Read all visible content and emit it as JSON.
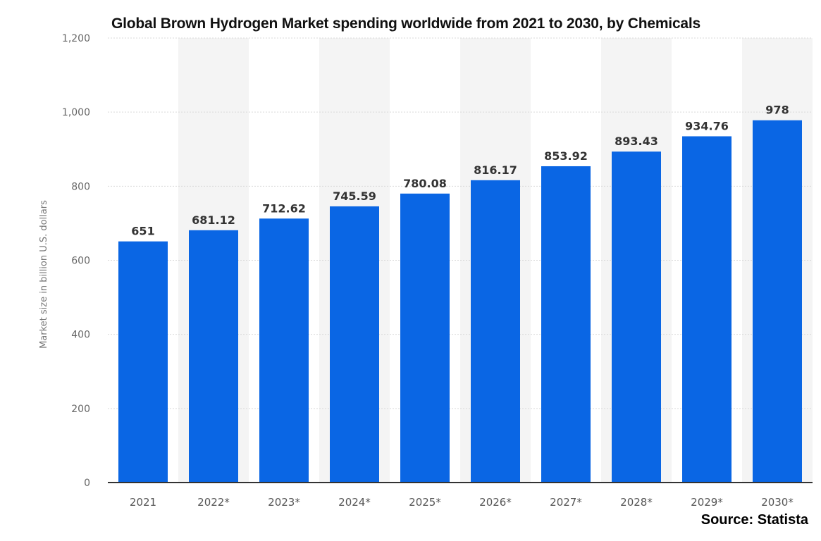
{
  "chart_data": {
    "type": "bar",
    "title": "Global Brown Hydrogen Market spending worldwide from 2021 to 2030, by Chemicals",
    "xlabel": "",
    "ylabel": "Market size in billion U.S. dollars",
    "categories": [
      "2021",
      "2022*",
      "2023*",
      "2024*",
      "2025*",
      "2026*",
      "2027*",
      "2028*",
      "2029*",
      "2030*"
    ],
    "values": [
      651,
      681.12,
      712.62,
      745.59,
      780.08,
      816.17,
      853.92,
      893.43,
      934.76,
      978
    ],
    "data_labels": [
      "651",
      "681.12",
      "712.62",
      "745.59",
      "780.08",
      "816.17",
      "853.92",
      "893.43",
      "934.76",
      "978"
    ],
    "ylim": [
      0,
      1200
    ],
    "yticks": [
      0,
      200,
      400,
      600,
      800,
      1000,
      1200
    ],
    "ytick_labels": [
      "0",
      "200",
      "400",
      "600",
      "800",
      "1,000",
      "1,200"
    ],
    "grid": true,
    "legend": "none",
    "colors": {
      "bar": "#0a66e4",
      "alt_band": "#f4f4f4",
      "grid": "#d9d9d9",
      "axis": "#333333"
    }
  },
  "source": "Source: Statista"
}
